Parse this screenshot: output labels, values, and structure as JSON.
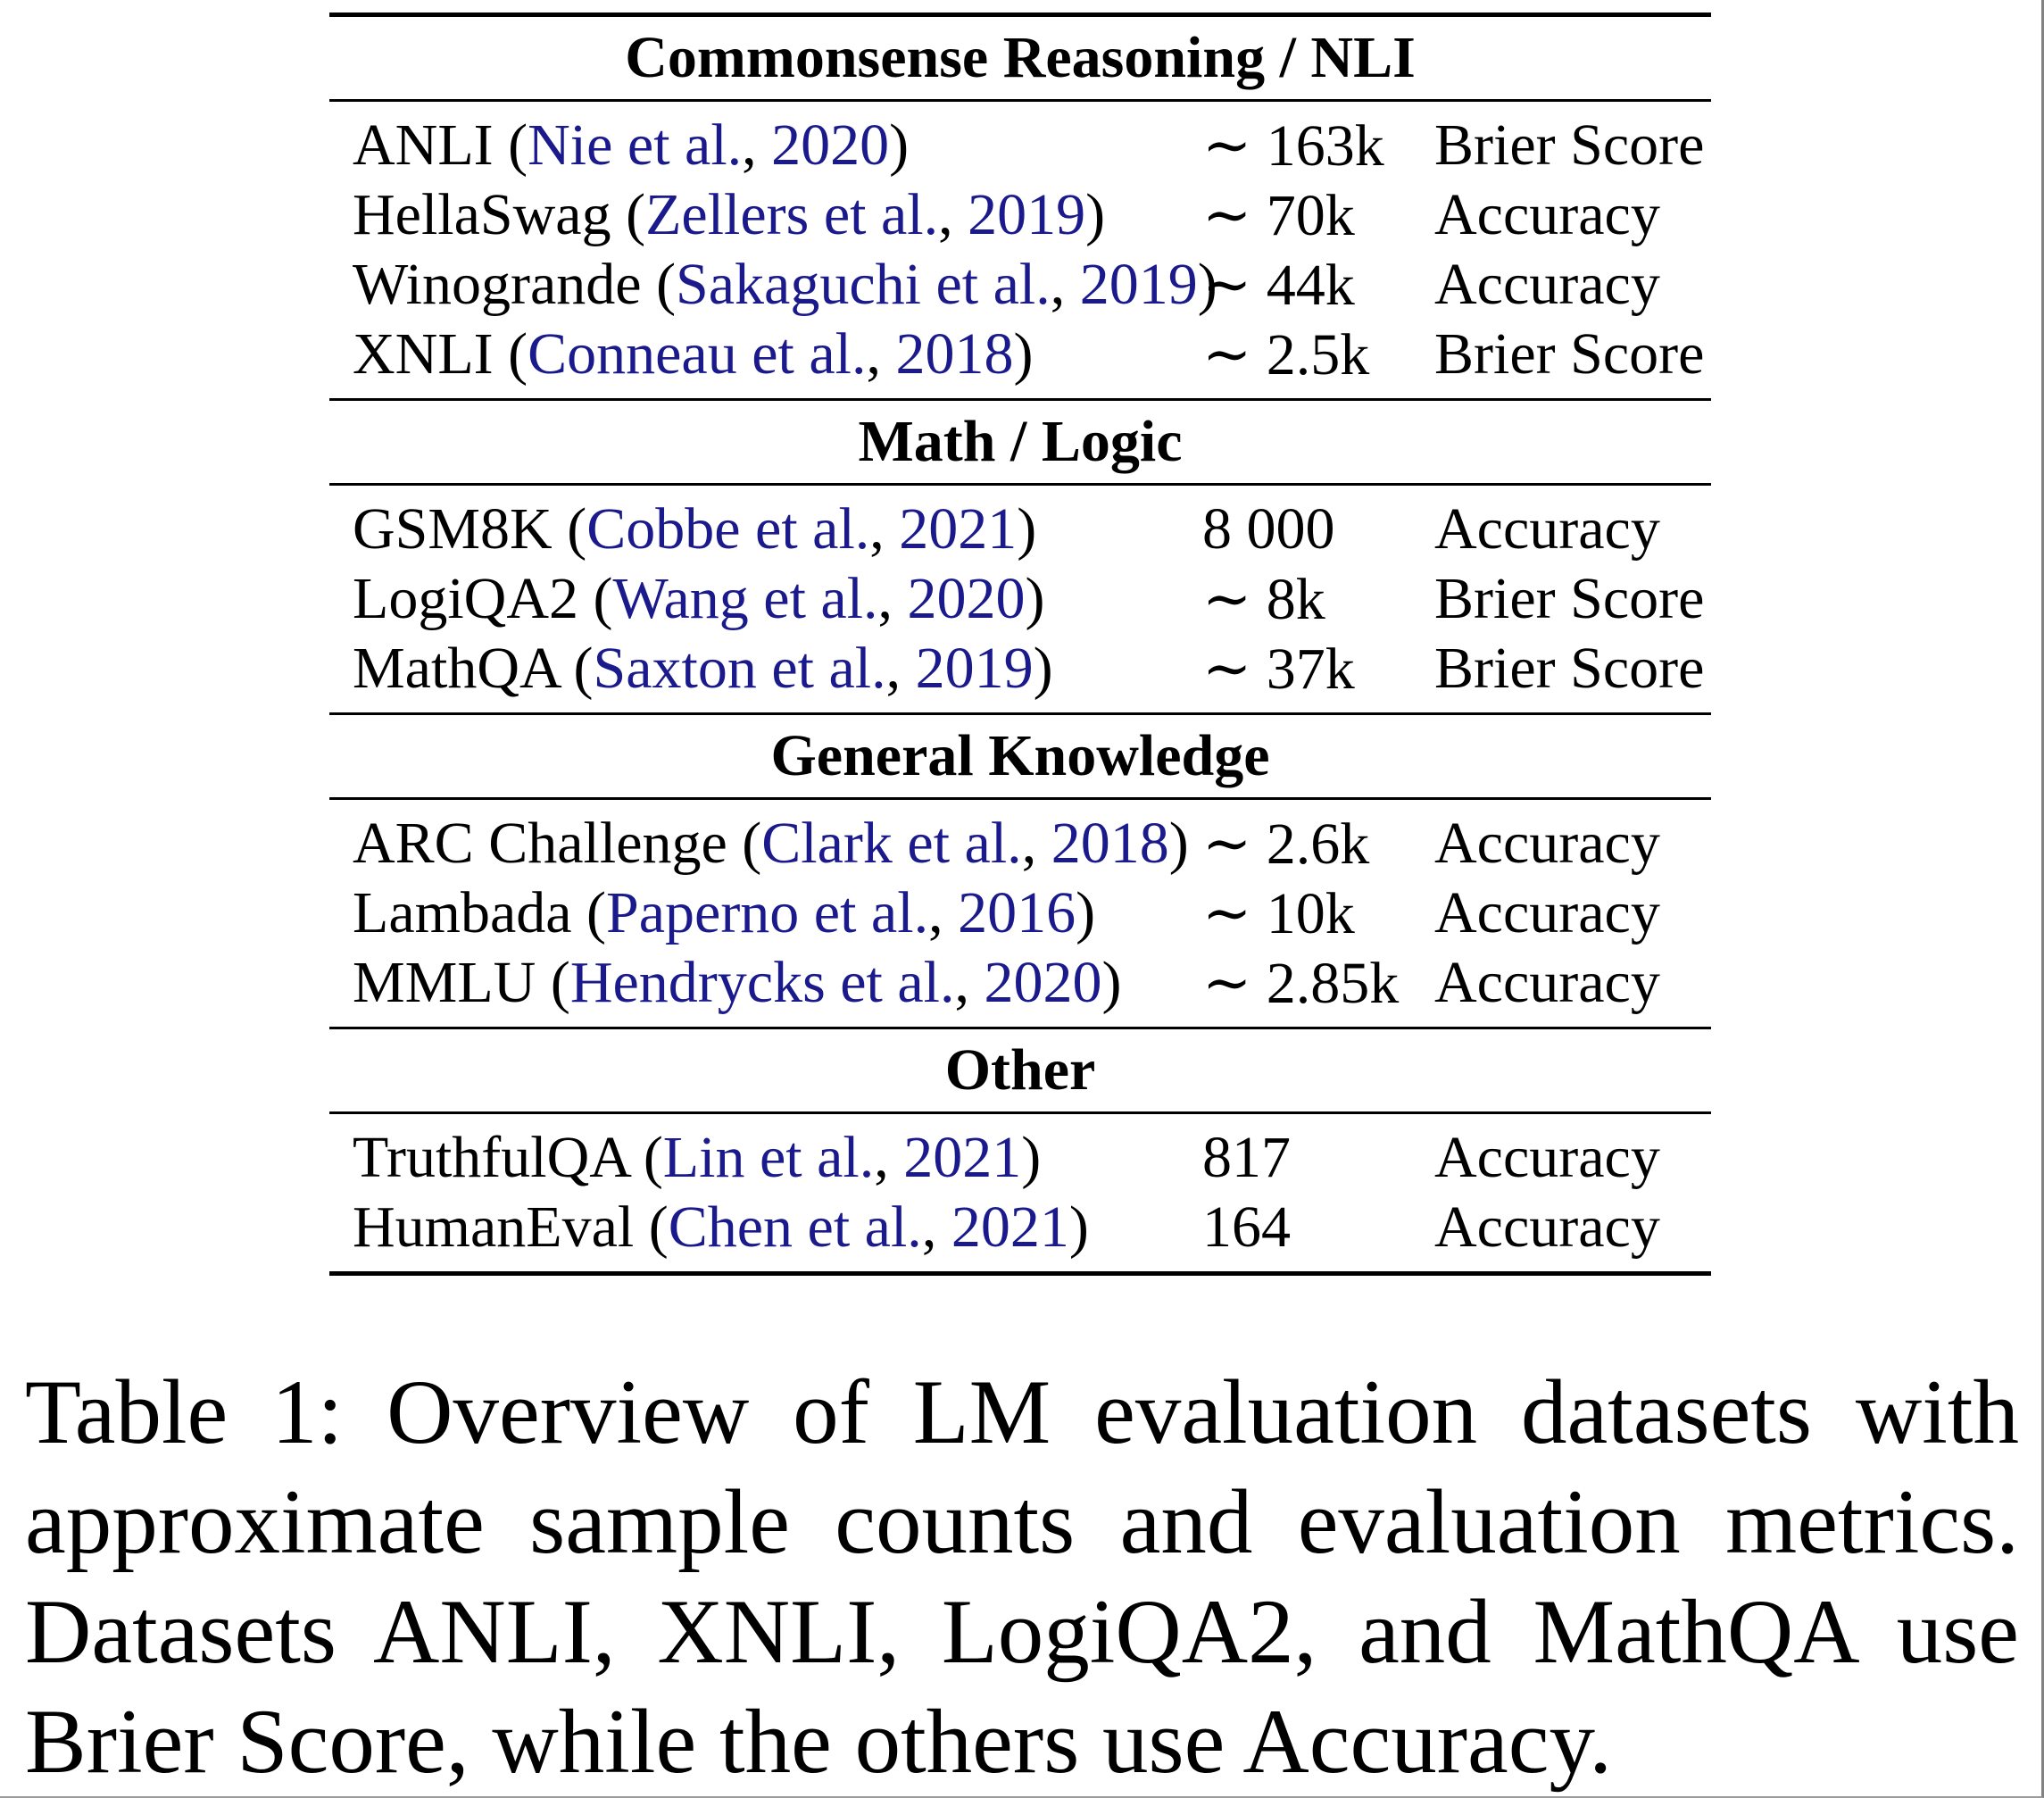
{
  "table": {
    "punct": {
      "open": " (",
      "comma": ", ",
      "close": ")"
    },
    "sections": [
      {
        "header": "Commonsense Reasoning / NLI",
        "rows": [
          {
            "dataset": "ANLI",
            "authors": "Nie et al.",
            "year": "2020",
            "count": "∼ 163k",
            "metric": "Brier Score"
          },
          {
            "dataset": "HellaSwag",
            "authors": "Zellers et al.",
            "year": "2019",
            "count": "∼ 70k",
            "metric": "Accuracy"
          },
          {
            "dataset": "Winogrande",
            "authors": "Sakaguchi et al.",
            "year": "2019",
            "count": "∼ 44k",
            "metric": "Accuracy"
          },
          {
            "dataset": "XNLI",
            "authors": "Conneau et al.",
            "year": "2018",
            "count": "∼ 2.5k",
            "metric": "Brier Score"
          }
        ]
      },
      {
        "header": "Math / Logic",
        "rows": [
          {
            "dataset": "GSM8K",
            "authors": "Cobbe et al.",
            "year": "2021",
            "count": "8 000",
            "metric": "Accuracy"
          },
          {
            "dataset": "LogiQA2",
            "authors": "Wang et al.",
            "year": "2020",
            "count": "∼ 8k",
            "metric": "Brier Score"
          },
          {
            "dataset": "MathQA",
            "authors": "Saxton et al.",
            "year": "2019",
            "count": "∼ 37k",
            "metric": "Brier Score"
          }
        ]
      },
      {
        "header": "General Knowledge",
        "rows": [
          {
            "dataset": "ARC Challenge",
            "authors": "Clark et al.",
            "year": "2018",
            "count": "∼ 2.6k",
            "metric": "Accuracy"
          },
          {
            "dataset": "Lambada",
            "authors": "Paperno et al.",
            "year": "2016",
            "count": "∼ 10k",
            "metric": "Accuracy"
          },
          {
            "dataset": "MMLU",
            "authors": "Hendrycks et al.",
            "year": "2020",
            "count": "∼ 2.85k",
            "metric": "Accuracy"
          }
        ]
      },
      {
        "header": "Other",
        "rows": [
          {
            "dataset": "TruthfulQA",
            "authors": "Lin et al.",
            "year": "2021",
            "count": "817",
            "metric": "Accuracy"
          },
          {
            "dataset": "HumanEval",
            "authors": "Chen et al.",
            "year": "2021",
            "count": "164",
            "metric": "Accuracy"
          }
        ]
      }
    ]
  },
  "caption": {
    "lines": [
      "Table 1: Overview of LM evaluation datasets with",
      "approximate sample counts and evaluation metrics.",
      "Datasets ANLI, XNLI, LogiQA2, and MathQA use",
      "Brier Score, while the others use Accuracy."
    ]
  },
  "colors": {
    "citation_link": "#1a1a8c",
    "body_text": "#000000",
    "edge_right": "#828282",
    "edge_bottom": "#9b9b9b"
  }
}
